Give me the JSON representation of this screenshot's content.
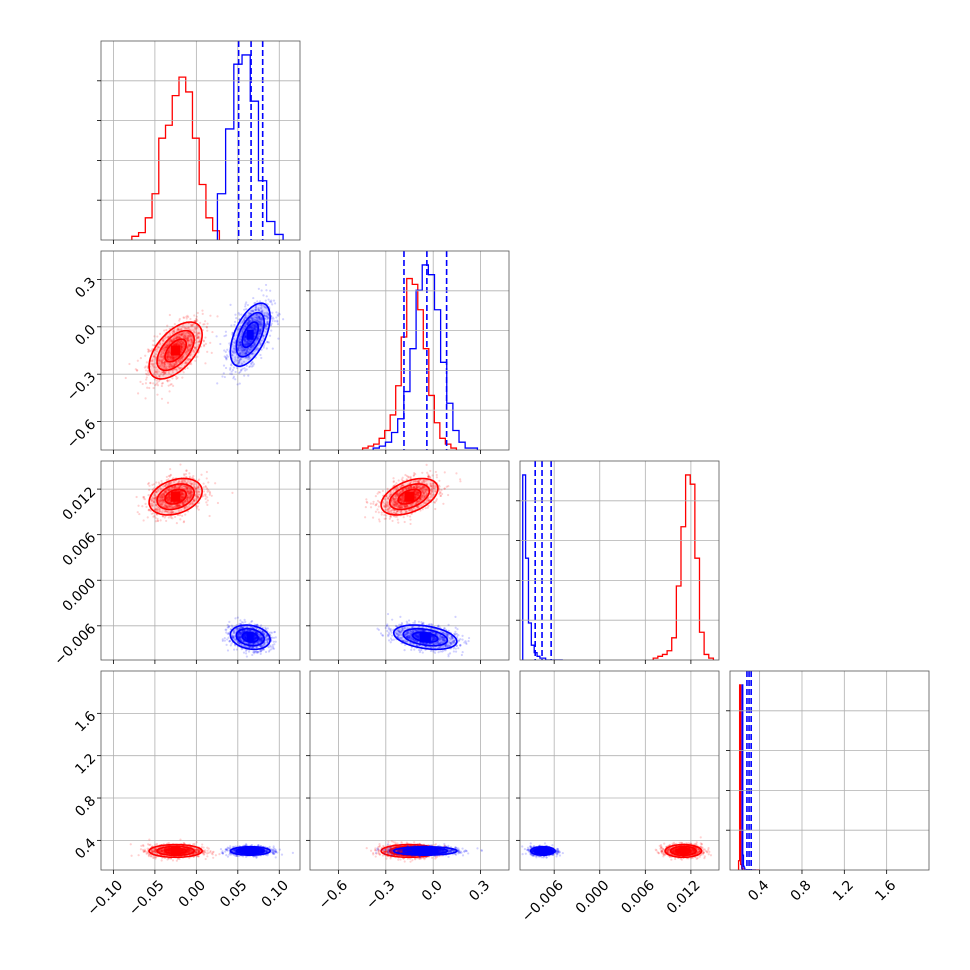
{
  "chart_data": {
    "type": "corner",
    "grid": true,
    "series": [
      {
        "color": "#ff0000",
        "hist_counts": [
          [
            2,
            4,
            12,
            25,
            55,
            62,
            78,
            88,
            80,
            55,
            30,
            12,
            5
          ],
          [
            1,
            2,
            3,
            6,
            10,
            18,
            33,
            58,
            88,
            85,
            72,
            52,
            28,
            14,
            6,
            3,
            1
          ],
          [
            1,
            2,
            3,
            5,
            12,
            40,
            72,
            100,
            95,
            55,
            15,
            3,
            1
          ],
          [
            5,
            100,
            3,
            1,
            0,
            0,
            0,
            0,
            0,
            0,
            0,
            0,
            0,
            0,
            0,
            0,
            0,
            0,
            0,
            0
          ]
        ],
        "means": [
          -0.025,
          -0.15,
          0.011,
          0.3
        ],
        "sds": [
          0.016,
          0.09,
          0.0012,
          0.03
        ],
        "rhos": [
          [
            1,
            0.55,
            0.3,
            0
          ],
          [
            0.55,
            1,
            0.45,
            0
          ],
          [
            0.3,
            0.45,
            1,
            0
          ],
          [
            0,
            0,
            0,
            1
          ]
        ],
        "quantile_lines": []
      },
      {
        "color": "#0000ff",
        "hist_counts": [
          [
            25,
            60,
            95,
            100,
            75,
            32,
            10,
            3
          ],
          [
            1,
            2,
            4,
            9,
            16,
            30,
            52,
            82,
            95,
            90,
            72,
            45,
            24,
            10,
            4,
            1,
            1
          ],
          [
            100,
            55,
            20,
            8,
            4,
            2,
            1,
            1,
            0,
            0,
            0,
            0,
            0,
            0
          ],
          [
            100,
            8,
            2,
            1,
            0,
            0,
            0,
            0,
            0,
            0,
            0,
            0,
            0,
            0,
            0,
            0,
            0,
            0,
            0,
            0
          ]
        ],
        "means": [
          0.065,
          -0.05,
          -0.0075,
          0.3
        ],
        "sds": [
          0.012,
          0.1,
          0.0008,
          0.02
        ],
        "rhos": [
          [
            1,
            0.55,
            -0.2,
            0
          ],
          [
            0.55,
            1,
            -0.35,
            0
          ],
          [
            -0.2,
            -0.35,
            1,
            0
          ],
          [
            0,
            0,
            0,
            1
          ]
        ],
        "quantile_lines": [
          [
            0.051,
            0.066,
            0.08
          ],
          [
            -0.185,
            -0.04,
            0.085
          ],
          [
            -0.0085,
            -0.0076,
            -0.0064
          ],
          [
            0.28,
            0.3,
            0.32
          ]
        ]
      }
    ],
    "params": [
      {
        "range": [
          -0.115,
          0.125
        ],
        "ticks": [
          -0.1,
          -0.05,
          0.0,
          0.05,
          0.1
        ],
        "tick_labels": [
          "−0.10",
          "−0.05",
          "0.00",
          "0.05",
          "0.10"
        ]
      },
      {
        "range": [
          -0.78,
          0.48
        ],
        "ticks": [
          -0.6,
          -0.3,
          0.0,
          0.3
        ],
        "tick_labels": [
          "−0.6",
          "−0.3",
          "0.0",
          "0.3"
        ]
      },
      {
        "range": [
          -0.0105,
          0.0157
        ],
        "ticks": [
          -0.006,
          0.0,
          0.006,
          0.012
        ],
        "tick_labels": [
          "−0.006",
          "0.000",
          "0.006",
          "0.012"
        ]
      },
      {
        "range": [
          0.12,
          2.0
        ],
        "ticks": [
          0.4,
          0.8,
          1.2,
          1.6
        ],
        "tick_labels": [
          "0.4",
          "0.8",
          "1.2",
          "1.6"
        ]
      }
    ]
  }
}
